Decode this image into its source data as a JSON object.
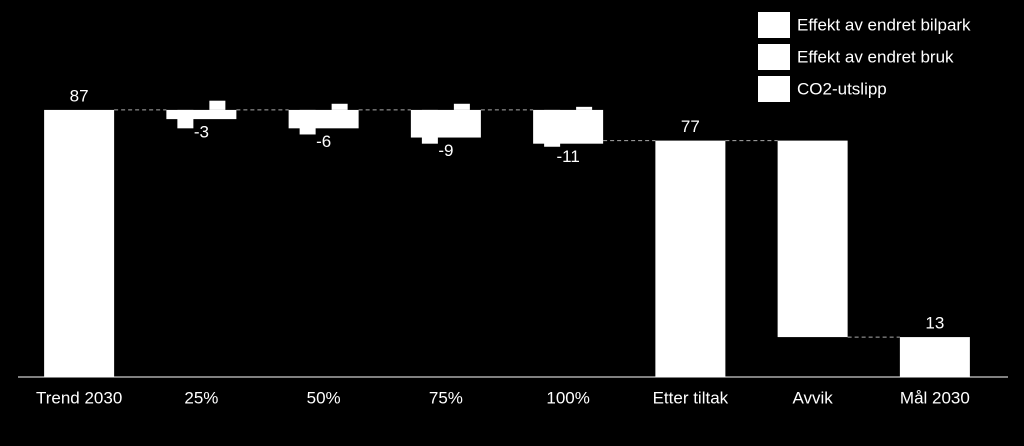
{
  "chart_data": {
    "type": "waterfall",
    "categories": [
      "Trend 2030",
      "25%",
      "50%",
      "75%",
      "100%",
      "Etter tiltak",
      "Avvik",
      "Mål 2030"
    ],
    "measure": [
      "total",
      "relative",
      "relative",
      "relative",
      "relative",
      "total",
      "relative",
      "total"
    ],
    "series": [
      {
        "name": "Effekt av endret bilpark",
        "color": "#ffffff",
        "values": [
          null,
          -6,
          -8,
          -11,
          -12,
          null,
          null,
          null
        ]
      },
      {
        "name": "Effekt av endret bruk",
        "color": "#ffffff",
        "values": [
          null,
          3,
          2,
          2,
          1,
          null,
          null,
          null
        ]
      },
      {
        "name": "CO2-utslipp",
        "color": "#ffffff",
        "values": [
          87,
          -3,
          -6,
          -9,
          -11,
          77,
          -64,
          13
        ],
        "value_labels": [
          "87",
          "-3",
          "-6",
          "-9",
          "-11",
          "77",
          null,
          "13"
        ]
      }
    ],
    "ylim": [
      0,
      100
    ],
    "connectors": true,
    "legend": "top-right"
  }
}
